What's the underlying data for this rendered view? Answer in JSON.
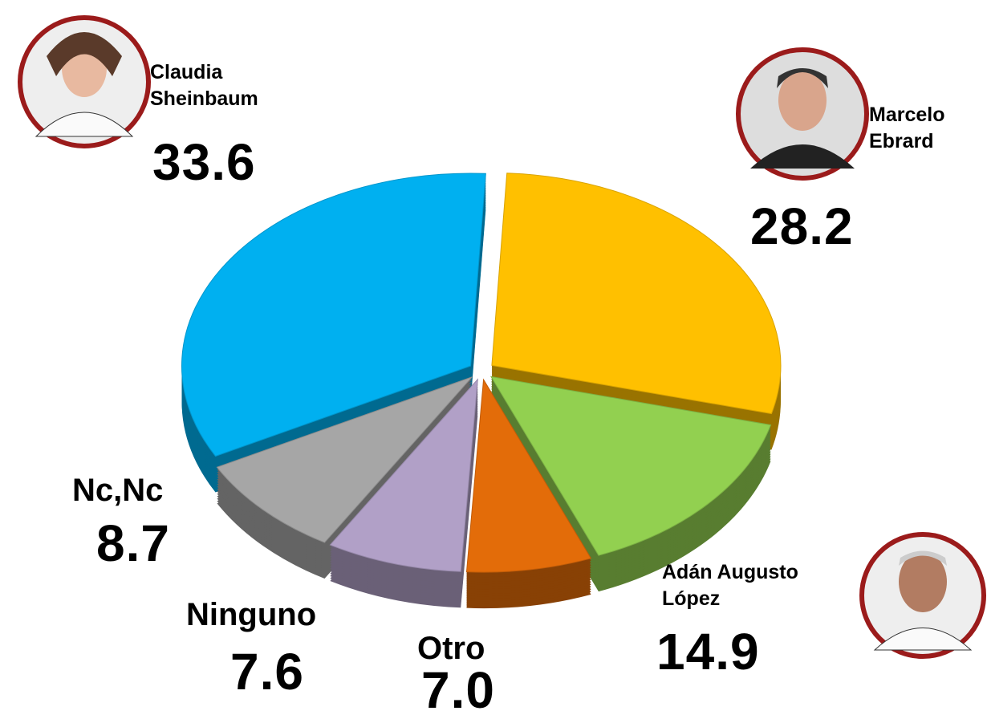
{
  "chart_data": {
    "type": "pie",
    "categories": [
      "Claudia Sheinbaum",
      "Marcelo Ebrard",
      "Adán Augusto López",
      "Otro",
      "Ninguno",
      "Nc,Nc"
    ],
    "values": [
      33.6,
      28.2,
      14.9,
      7.0,
      7.6,
      8.7
    ],
    "value_labels": [
      "33.6",
      "28.2",
      "14.9",
      "7.0",
      "7.6",
      "8.7"
    ],
    "colors": [
      "#00b0f0",
      "#ffc000",
      "#92d050",
      "#e36c09",
      "#b1a0c7",
      "#a6a6a6"
    ]
  }
}
